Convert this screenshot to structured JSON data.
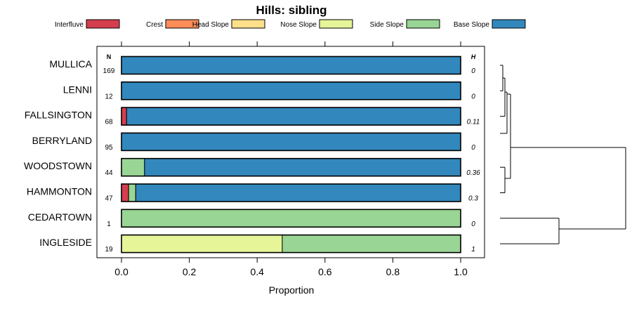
{
  "chart_data": {
    "type": "bar",
    "subtype": "stacked-horizontal-proportion",
    "title": "Hills: sibling",
    "xlabel": "Proportion",
    "xlim": [
      0,
      1
    ],
    "xticks": [
      "0.0",
      "0.2",
      "0.4",
      "0.6",
      "0.8",
      "1.0"
    ],
    "xtick_values": [
      0,
      0.2,
      0.4,
      0.6,
      0.8,
      1.0
    ],
    "n_header": "N",
    "h_header": "H",
    "legend": [
      {
        "name": "Interfluve",
        "color": "#D53E4F"
      },
      {
        "name": "Crest",
        "color": "#FC8D59"
      },
      {
        "name": "Head Slope",
        "color": "#FEE08B"
      },
      {
        "name": "Nose Slope",
        "color": "#E6F598"
      },
      {
        "name": "Side Slope",
        "color": "#99D594"
      },
      {
        "name": "Base Slope",
        "color": "#3288BD"
      }
    ],
    "categories": [
      "MULLICA",
      "LENNI",
      "FALLSINGTON",
      "BERRYLAND",
      "WOODSTOWN",
      "HAMMONTON",
      "CEDARTOWN",
      "INGLESIDE"
    ],
    "n": [
      "169",
      "12",
      "68",
      "95",
      "44",
      "47",
      "1",
      "19"
    ],
    "h": [
      "0",
      "0",
      "0.11",
      "0",
      "0.36",
      "0.3",
      "0",
      "1"
    ],
    "series": [
      {
        "name": "Interfluve",
        "values": [
          0,
          0,
          0.015,
          0,
          0,
          0.021,
          0,
          0
        ]
      },
      {
        "name": "Crest",
        "values": [
          0,
          0,
          0,
          0,
          0,
          0,
          0,
          0
        ]
      },
      {
        "name": "Head Slope",
        "values": [
          0,
          0,
          0,
          0,
          0,
          0,
          0,
          0
        ]
      },
      {
        "name": "Nose Slope",
        "values": [
          0,
          0,
          0,
          0,
          0,
          0,
          0,
          0.474
        ]
      },
      {
        "name": "Side Slope",
        "values": [
          0,
          0,
          0,
          0,
          0.068,
          0.021,
          1,
          0.526
        ]
      },
      {
        "name": "Base Slope",
        "values": [
          1,
          1,
          0.985,
          1,
          0.932,
          0.958,
          0,
          0
        ]
      }
    ],
    "dendrogram": "hierarchical clustering tree of the categories shown at right"
  }
}
